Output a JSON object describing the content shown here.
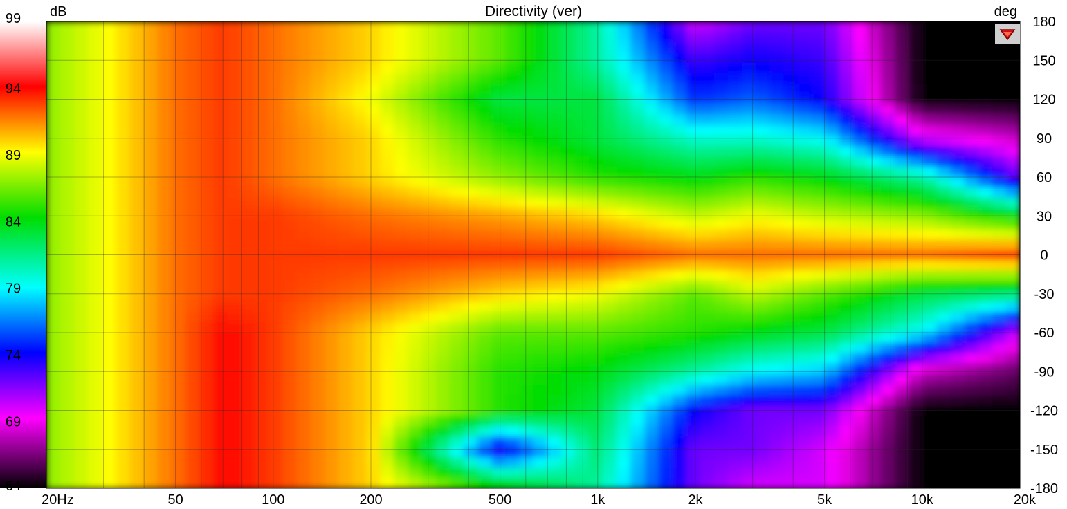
{
  "chart_data": {
    "type": "heatmap",
    "title": "Directivity (ver)",
    "colorbar_unit": "dB",
    "right_axis_unit": "deg",
    "x_scale": "log",
    "x_range_hz": [
      20,
      20000
    ],
    "x_ticks": [
      {
        "value": 20,
        "label": "20Hz"
      },
      {
        "value": 50,
        "label": "50"
      },
      {
        "value": 100,
        "label": "100"
      },
      {
        "value": 200,
        "label": "200"
      },
      {
        "value": 500,
        "label": "500"
      },
      {
        "value": 1000,
        "label": "1k"
      },
      {
        "value": 2000,
        "label": "2k"
      },
      {
        "value": 5000,
        "label": "5k"
      },
      {
        "value": 10000,
        "label": "10k"
      },
      {
        "value": 20000,
        "label": "20k"
      }
    ],
    "y_range_deg": [
      -180,
      180
    ],
    "y_ticks": [
      180,
      150,
      120,
      90,
      60,
      30,
      0,
      -30,
      -60,
      -90,
      -120,
      -150,
      -180
    ],
    "colorbar_range_db": [
      64,
      99
    ],
    "colorbar_ticks": [
      99,
      94,
      89,
      84,
      79,
      74,
      69,
      64
    ],
    "grid": true,
    "contours": true,
    "approx_levels": {
      "freqs_hz": [
        20,
        30,
        50,
        70,
        100,
        200,
        500,
        1000,
        2000,
        3000,
        5000,
        10000,
        20000
      ],
      "angles_deg": [
        180,
        150,
        120,
        90,
        60,
        30,
        0,
        -30,
        -60,
        -90,
        -120,
        -150,
        -180
      ],
      "db": [
        [
          87,
          89,
          92,
          93,
          92,
          90,
          86,
          81,
          70,
          72,
          72,
          64,
          64
        ],
        [
          87,
          89,
          92,
          93,
          92,
          90,
          86,
          81,
          73,
          74,
          73,
          64,
          64
        ],
        [
          87,
          89,
          92,
          93,
          92,
          89,
          83,
          83,
          75,
          76,
          74,
          64,
          64
        ],
        [
          87,
          89,
          92,
          93,
          92,
          90,
          85,
          83,
          80,
          80,
          79,
          70,
          68
        ],
        [
          87,
          89,
          92,
          93,
          92,
          90,
          87,
          85,
          84,
          85,
          84,
          81,
          72
        ],
        [
          87,
          89,
          92,
          93,
          93,
          92,
          91,
          90,
          88,
          89,
          88,
          87,
          84
        ],
        [
          87,
          89,
          92,
          93,
          93,
          93,
          93,
          93,
          92,
          92,
          92,
          92,
          93
        ],
        [
          87,
          89,
          92,
          93,
          93,
          92,
          90,
          89,
          86,
          88,
          86,
          83,
          82
        ],
        [
          87,
          89,
          92,
          94,
          93,
          90,
          86,
          86,
          85,
          84,
          83,
          79,
          70
        ],
        [
          87,
          89,
          92,
          94,
          93,
          90,
          85,
          84,
          81,
          79,
          78,
          68,
          66
        ],
        [
          87,
          89,
          92,
          94,
          93,
          90,
          85,
          83,
          74,
          72,
          72,
          64,
          64
        ],
        [
          87,
          89,
          92,
          94,
          93,
          90,
          73,
          82,
          72,
          72,
          70,
          64,
          64
        ],
        [
          87,
          89,
          92,
          94,
          93,
          90,
          85,
          81,
          72,
          70,
          70,
          64,
          64
        ]
      ]
    }
  },
  "logo_icon": "red-triangle-logo"
}
